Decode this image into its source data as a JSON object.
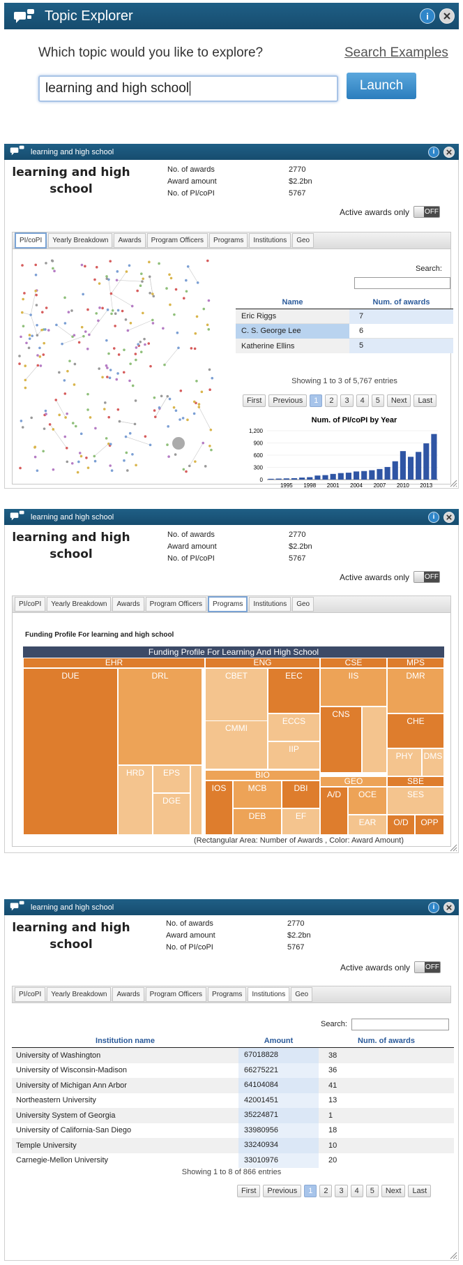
{
  "explorer": {
    "title": "Topic Explorer",
    "prompt": "Which topic would you like to explore?",
    "search_examples": "Search Examples",
    "query": "learning and high school",
    "launch": "Launch",
    "info": "i"
  },
  "panel": {
    "window_title": "learning and high school",
    "topic_title": "learning and high school",
    "stats": [
      {
        "label": "No. of awards",
        "value": "2770"
      },
      {
        "label": "Award amount",
        "value": "$2.2bn"
      },
      {
        "label": "No. of PI/coPI",
        "value": "5767"
      }
    ],
    "active_only": "Active awards only",
    "toggle": "OFF",
    "info": "i"
  },
  "tabs": [
    "PI/coPI",
    "Yearly Breakdown",
    "Awards",
    "Program Officers",
    "Programs",
    "Institutions",
    "Geo"
  ],
  "pi": {
    "search": "Search:",
    "col_name": "Name",
    "col_num": "Num. of awards",
    "rows": [
      {
        "name": "Eric Riggs",
        "num": "7"
      },
      {
        "name": "C. S. George Lee",
        "num": "6"
      },
      {
        "name": "Katherine Ellins",
        "num": "5"
      }
    ],
    "showing": "Showing 1 to 3 of 5,767 entries"
  },
  "pager": {
    "first": "First",
    "prev": "Previous",
    "pages": [
      "1",
      "2",
      "3",
      "4",
      "5"
    ],
    "next": "Next",
    "last": "Last"
  },
  "chart_data": {
    "type": "bar",
    "title": "Num. of PI/coPI by Year",
    "x": [
      1993,
      1994,
      1995,
      1996,
      1997,
      1998,
      1999,
      2000,
      2001,
      2002,
      2003,
      2004,
      2005,
      2006,
      2007,
      2008,
      2009,
      2010,
      2011,
      2012,
      2013,
      2014
    ],
    "values": [
      20,
      25,
      30,
      35,
      50,
      60,
      100,
      110,
      140,
      160,
      170,
      200,
      210,
      230,
      260,
      310,
      450,
      700,
      560,
      680,
      890,
      1120
    ],
    "xticks": [
      "1995",
      "1998",
      "2001",
      "2004",
      "2007",
      "2010",
      "2013"
    ],
    "yticks": [
      "0",
      "300",
      "600",
      "900",
      "1,200"
    ],
    "ylim": [
      0,
      1200
    ],
    "xlabel": "",
    "ylabel": ""
  },
  "programs": {
    "header": "Funding Profile For learning and high school",
    "tm_title": "Funding Profile For Learning And High School",
    "caption": "(Rectangular Area: Number of Awards , Color: Award Amount)",
    "labels": {
      "EHR": "EHR",
      "ENG": "ENG",
      "CSE": "CSE",
      "MPS": "MPS",
      "DUE": "DUE",
      "DRL": "DRL",
      "HRD": "HRD",
      "EPS": "EPS",
      "DGE": "DGE",
      "CBET": "CBET",
      "EEC": "EEC",
      "ECCS": "ECCS",
      "CMMI": "CMMI",
      "IIP": "IIP",
      "BIO": "BIO",
      "IOS": "IOS",
      "MCB": "MCB",
      "DBI": "DBI",
      "DEB": "DEB",
      "EF": "EF",
      "IIS": "IIS",
      "CNS": "CNS",
      "GEO": "GEO",
      "AD": "A/D",
      "OCE": "OCE",
      "EAR": "EAR",
      "DMR": "DMR",
      "CHE": "CHE",
      "PHY": "PHY",
      "DMS": "DMS",
      "SBE": "SBE",
      "SES": "SES",
      "OD": "O/D",
      "OPP": "OPP"
    }
  },
  "inst": {
    "search": "Search:",
    "col_name": "Institution name",
    "col_amount": "Amount",
    "col_num": "Num. of awards",
    "rows": [
      {
        "name": "University of Washington",
        "amount": "67018828",
        "num": "38"
      },
      {
        "name": "University of Wisconsin-Madison",
        "amount": "66275221",
        "num": "36"
      },
      {
        "name": "University of Michigan Ann Arbor",
        "amount": "64104084",
        "num": "41"
      },
      {
        "name": "Northeastern University",
        "amount": "42001451",
        "num": "13"
      },
      {
        "name": "University System of Georgia",
        "amount": "35224871",
        "num": "1"
      },
      {
        "name": "University of California-San Diego",
        "amount": "33980956",
        "num": "18"
      },
      {
        "name": "Temple University",
        "amount": "33240934",
        "num": "10"
      },
      {
        "name": "Carnegie-Mellon University",
        "amount": "33010976",
        "num": "20"
      }
    ],
    "showing": "Showing 1 to 8 of 866 entries"
  },
  "colors": {
    "titlebar": "#1a5679",
    "accent": "#2f86c9",
    "orange_dark": "#de7d2d",
    "orange_mid": "#eda357",
    "orange_light": "#f4c48e",
    "bar": "#2f55a4"
  }
}
